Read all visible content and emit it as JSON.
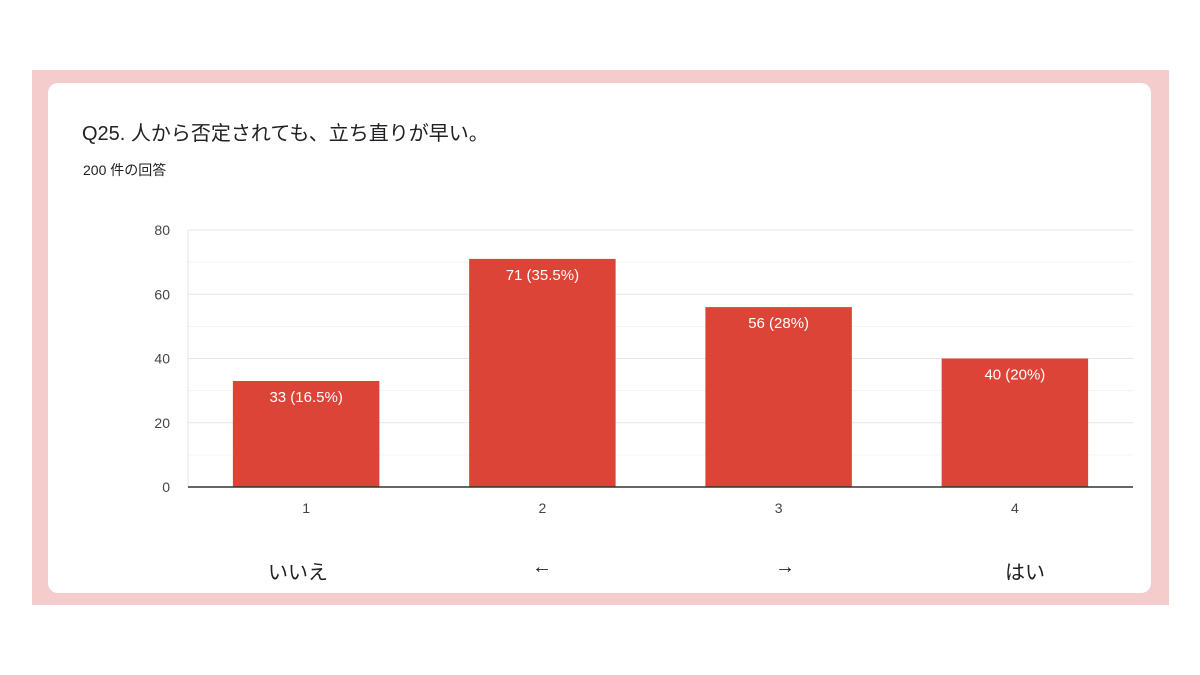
{
  "question": {
    "title": "Q25.  人から否定されても、立ち直りが早い。",
    "response_count": "200 件の回答"
  },
  "chart_data": {
    "type": "bar",
    "categories": [
      "1",
      "2",
      "3",
      "4"
    ],
    "values": [
      33,
      71,
      56,
      40
    ],
    "data_labels": [
      "33 (16.5%)",
      "71 (35.5%)",
      "56 (28%)",
      "40 (20%)"
    ],
    "ylim": [
      0,
      80
    ],
    "yticks": [
      0,
      20,
      40,
      60,
      80
    ],
    "grid": true,
    "bar_color": "#db4437"
  },
  "scale_labels": [
    "いいえ",
    "←",
    "→",
    "はい"
  ]
}
